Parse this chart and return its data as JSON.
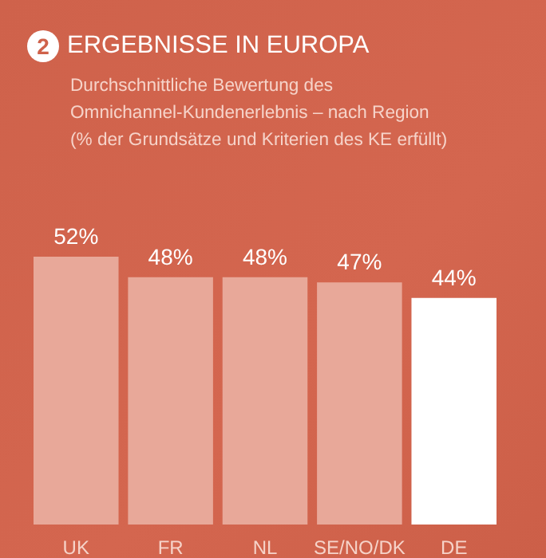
{
  "chart_data": {
    "type": "bar",
    "title": "ERGEBNISSE IN EUROPA",
    "subtitle": "Durchschnittliche Bewertung des\nOmnichannel-Kundenerlebnis – nach Region\n(% der Grundsätze und Kriterien des KE erfüllt)",
    "annotations": [
      "2"
    ],
    "categories": [
      "UK",
      "FR",
      "NL",
      "SE/NO/DK",
      "DE"
    ],
    "values": [
      52,
      48,
      48,
      47,
      44
    ],
    "value_labels": [
      "52%",
      "48%",
      "48%",
      "47%",
      "44%"
    ],
    "colors": [
      "#e8a899",
      "#e8a899",
      "#e8a899",
      "#e8a899",
      "#ffffff"
    ]
  }
}
